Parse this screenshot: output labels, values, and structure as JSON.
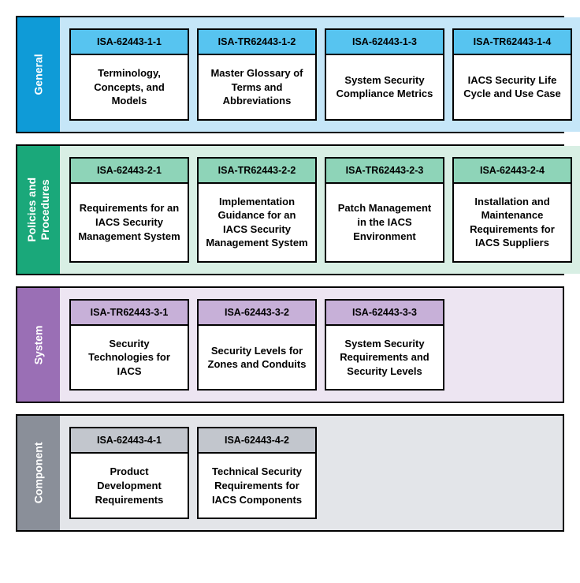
{
  "sections": [
    {
      "id": "general",
      "label": "General",
      "tab_color": "#0f9bd7",
      "body_color": "#c5e6f8",
      "card_header_color": "#57c4f0",
      "cards": [
        {
          "code": "ISA-62443-1-1",
          "title": "Terminology, Concepts, and Models"
        },
        {
          "code": "ISA-TR62443-1-2",
          "title": "Master Glossary of Terms and Abbreviations"
        },
        {
          "code": "ISA-62443-1-3",
          "title": "System Security Compliance Metrics"
        },
        {
          "code": "ISA-TR62443-1-4",
          "title": "IACS Security Life Cycle and Use Case"
        }
      ]
    },
    {
      "id": "policies",
      "label": "Policies and\nProcedures",
      "tab_color": "#1aa87a",
      "body_color": "#d8efe4",
      "card_header_color": "#8ed4b8",
      "cards": [
        {
          "code": "ISA-62443-2-1",
          "title": "Requirements for an IACS Security Management System"
        },
        {
          "code": "ISA-TR62443-2-2",
          "title": "Implementation Guidance for an IACS Security Management System"
        },
        {
          "code": "ISA-TR62443-2-3",
          "title": "Patch Management in the IACS Environment"
        },
        {
          "code": "ISA-62443-2-4",
          "title": "Installation and Maintenance Requirements for IACS Suppliers"
        }
      ]
    },
    {
      "id": "system",
      "label": "System",
      "tab_color": "#9a6fb5",
      "body_color": "#ede5f2",
      "card_header_color": "#c7b0d8",
      "cards": [
        {
          "code": "ISA-TR62443-3-1",
          "title": "Security Technologies for IACS"
        },
        {
          "code": "ISA-62443-3-2",
          "title": "Security Levels for Zones and Conduits"
        },
        {
          "code": "ISA-62443-3-3",
          "title": "System Security Requirements and Security Levels"
        }
      ]
    },
    {
      "id": "component",
      "label": "Component",
      "tab_color": "#8a8f99",
      "body_color": "#e3e5e9",
      "card_header_color": "#c2c6cd",
      "cards": [
        {
          "code": "ISA-62443-4-1",
          "title": "Product Development Requirements"
        },
        {
          "code": "ISA-62443-4-2",
          "title": "Technical Security Requirements for IACS Components"
        }
      ]
    }
  ]
}
